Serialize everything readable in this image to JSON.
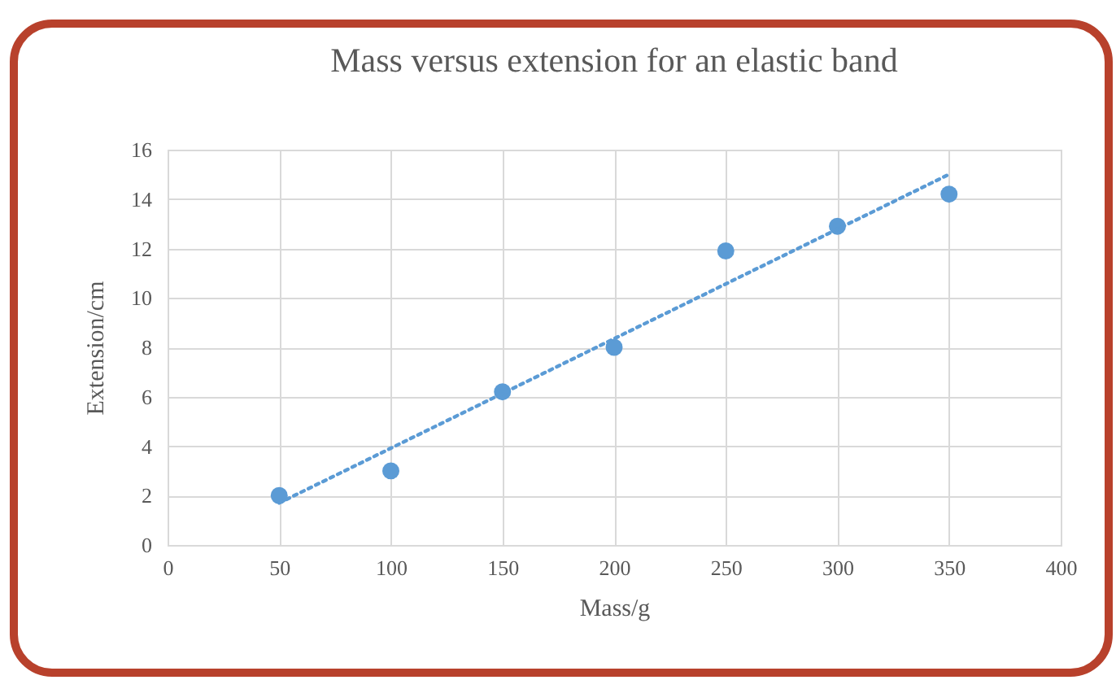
{
  "chart_data": {
    "type": "scatter",
    "title": "Mass versus extension for an elastic band",
    "xlabel": "Mass/g",
    "ylabel": "Extension/cm",
    "x": [
      50,
      100,
      150,
      200,
      250,
      300,
      350
    ],
    "series": [
      {
        "color": "#5b9bd5",
        "values": [
          2,
          3,
          6.2,
          8,
          11.9,
          12.9,
          14.2
        ],
        "marker": "circle"
      },
      {
        "type": "line",
        "color": "#5b9bd5",
        "x": [
          50,
          350
        ],
        "values": [
          1.7,
          15
        ],
        "line_style": "dotted",
        "marker": "none"
      }
    ],
    "xlim": [
      0,
      400
    ],
    "xticks": [
      0,
      50,
      100,
      150,
      200,
      250,
      300,
      350,
      400
    ],
    "ylim": [
      0,
      16
    ],
    "yticks": [
      0,
      2,
      4,
      6,
      8,
      10,
      12,
      14,
      16
    ],
    "grid": true
  }
}
